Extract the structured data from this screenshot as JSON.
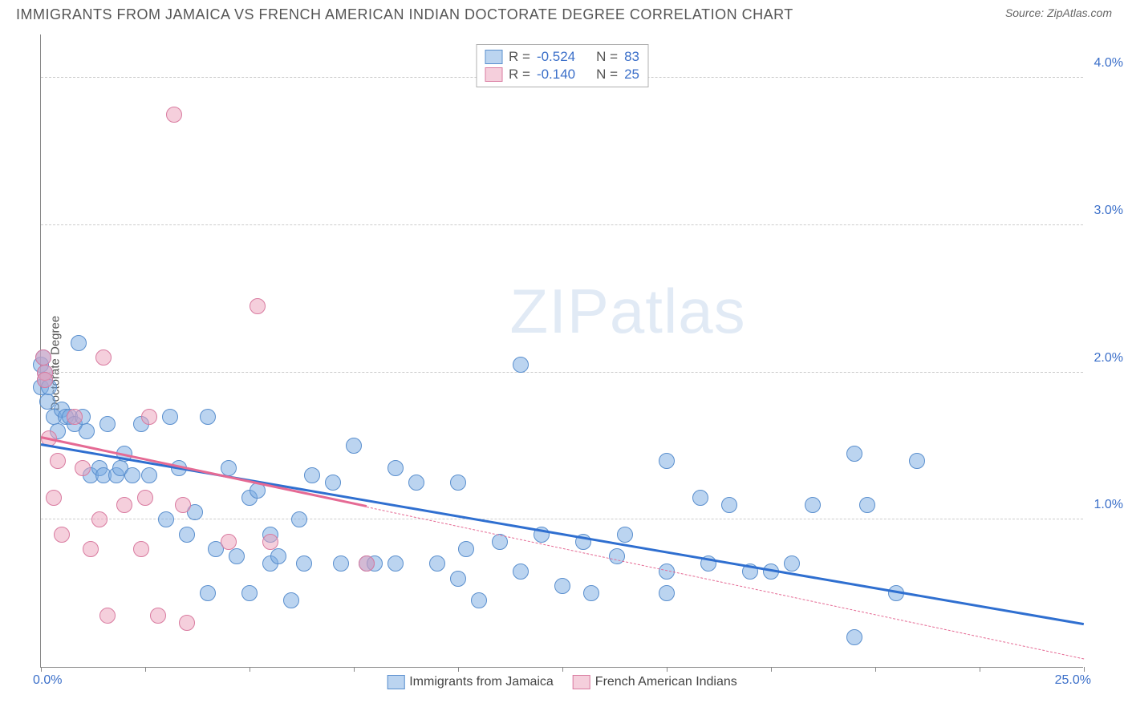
{
  "header": {
    "title": "IMMIGRANTS FROM JAMAICA VS FRENCH AMERICAN INDIAN DOCTORATE DEGREE CORRELATION CHART",
    "source_label": "Source: ",
    "source_name": "ZipAtlas.com"
  },
  "chart": {
    "type": "scatter",
    "ylabel": "Doctorate Degree",
    "xlim": [
      0,
      25
    ],
    "ylim": [
      0,
      4.3
    ],
    "x_tick_positions": [
      0,
      2.5,
      5,
      7.5,
      10,
      12.5,
      15,
      17.5,
      20,
      22.5,
      25
    ],
    "x_axis_min_label": "0.0%",
    "x_axis_max_label": "25.0%",
    "y_ticks": [
      {
        "v": 1.0,
        "label": "1.0%"
      },
      {
        "v": 2.0,
        "label": "2.0%"
      },
      {
        "v": 3.0,
        "label": "3.0%"
      },
      {
        "v": 4.0,
        "label": "4.0%"
      }
    ],
    "grid_color": "#cccccc",
    "axis_color": "#888888",
    "background_color": "#ffffff",
    "label_color": "#3b6fc9",
    "marker_radius": 10,
    "watermark_text_1": "ZIP",
    "watermark_text_2": "atlas",
    "series": [
      {
        "name": "Immigrants from Jamaica",
        "fill": "rgba(120,170,225,0.5)",
        "stroke": "#5a8fce",
        "line_color": "#2f6fd0",
        "R": "-0.524",
        "N": "83",
        "trend": {
          "x1": 0,
          "y1": 1.5,
          "x2": 25,
          "y2": 0.28,
          "solid_until_x": 25
        },
        "points": [
          [
            0.0,
            1.9
          ],
          [
            0.0,
            2.05
          ],
          [
            0.1,
            1.95
          ],
          [
            0.1,
            2.0
          ],
          [
            0.05,
            2.1
          ],
          [
            0.15,
            1.8
          ],
          [
            0.2,
            1.9
          ],
          [
            0.3,
            1.7
          ],
          [
            0.4,
            1.6
          ],
          [
            0.5,
            1.75
          ],
          [
            0.6,
            1.7
          ],
          [
            0.7,
            1.7
          ],
          [
            0.8,
            1.65
          ],
          [
            0.9,
            2.2
          ],
          [
            1.0,
            1.7
          ],
          [
            1.1,
            1.6
          ],
          [
            1.2,
            1.3
          ],
          [
            1.4,
            1.35
          ],
          [
            1.5,
            1.3
          ],
          [
            1.6,
            1.65
          ],
          [
            1.8,
            1.3
          ],
          [
            1.9,
            1.35
          ],
          [
            2.0,
            1.45
          ],
          [
            2.2,
            1.3
          ],
          [
            2.4,
            1.65
          ],
          [
            2.6,
            1.3
          ],
          [
            3.0,
            1.0
          ],
          [
            3.1,
            1.7
          ],
          [
            3.3,
            1.35
          ],
          [
            3.5,
            0.9
          ],
          [
            3.7,
            1.05
          ],
          [
            4.0,
            1.7
          ],
          [
            4.0,
            0.5
          ],
          [
            4.2,
            0.8
          ],
          [
            4.5,
            1.35
          ],
          [
            4.7,
            0.75
          ],
          [
            5.0,
            1.15
          ],
          [
            5.0,
            0.5
          ],
          [
            5.2,
            1.2
          ],
          [
            5.5,
            0.9
          ],
          [
            5.5,
            0.7
          ],
          [
            5.7,
            0.75
          ],
          [
            6.0,
            0.45
          ],
          [
            6.2,
            1.0
          ],
          [
            6.3,
            0.7
          ],
          [
            6.5,
            1.3
          ],
          [
            7.0,
            1.25
          ],
          [
            7.2,
            0.7
          ],
          [
            7.5,
            1.5
          ],
          [
            7.8,
            0.7
          ],
          [
            8.0,
            0.7
          ],
          [
            8.5,
            1.35
          ],
          [
            8.5,
            0.7
          ],
          [
            9.0,
            1.25
          ],
          [
            9.5,
            0.7
          ],
          [
            10.0,
            0.6
          ],
          [
            10.0,
            1.25
          ],
          [
            10.2,
            0.8
          ],
          [
            10.5,
            0.45
          ],
          [
            11.0,
            0.85
          ],
          [
            11.5,
            2.05
          ],
          [
            11.5,
            0.65
          ],
          [
            12.0,
            0.9
          ],
          [
            12.5,
            0.55
          ],
          [
            13.0,
            0.85
          ],
          [
            13.2,
            0.5
          ],
          [
            13.8,
            0.75
          ],
          [
            14.0,
            0.9
          ],
          [
            15.0,
            1.4
          ],
          [
            15.0,
            0.65
          ],
          [
            15.0,
            0.5
          ],
          [
            15.8,
            1.15
          ],
          [
            16.0,
            0.7
          ],
          [
            16.5,
            1.1
          ],
          [
            17.0,
            0.65
          ],
          [
            17.5,
            0.65
          ],
          [
            18.0,
            0.7
          ],
          [
            18.5,
            1.1
          ],
          [
            19.5,
            1.45
          ],
          [
            19.5,
            0.2
          ],
          [
            19.8,
            1.1
          ],
          [
            20.5,
            0.5
          ],
          [
            21.0,
            1.4
          ]
        ]
      },
      {
        "name": "French American Indians",
        "fill": "rgba(235,160,185,0.5)",
        "stroke": "#d97ba0",
        "line_color": "#e56a94",
        "R": "-0.140",
        "N": "25",
        "trend": {
          "x1": 0,
          "y1": 1.55,
          "x2": 25,
          "y2": 0.05,
          "solid_until_x": 7.8
        },
        "points": [
          [
            0.05,
            2.1
          ],
          [
            0.1,
            2.0
          ],
          [
            0.1,
            1.95
          ],
          [
            0.2,
            1.55
          ],
          [
            0.3,
            1.15
          ],
          [
            0.4,
            1.4
          ],
          [
            0.5,
            0.9
          ],
          [
            0.8,
            1.7
          ],
          [
            1.0,
            1.35
          ],
          [
            1.2,
            0.8
          ],
          [
            1.4,
            1.0
          ],
          [
            1.5,
            2.1
          ],
          [
            1.6,
            0.35
          ],
          [
            2.0,
            1.1
          ],
          [
            2.4,
            0.8
          ],
          [
            2.5,
            1.15
          ],
          [
            2.6,
            1.7
          ],
          [
            2.8,
            0.35
          ],
          [
            3.2,
            3.75
          ],
          [
            3.4,
            1.1
          ],
          [
            3.5,
            0.3
          ],
          [
            4.5,
            0.85
          ],
          [
            5.2,
            2.45
          ],
          [
            5.5,
            0.85
          ],
          [
            7.8,
            0.7
          ]
        ]
      }
    ]
  },
  "corr_legend": {
    "R_label": "R",
    "N_label": "N",
    "eq": "="
  }
}
